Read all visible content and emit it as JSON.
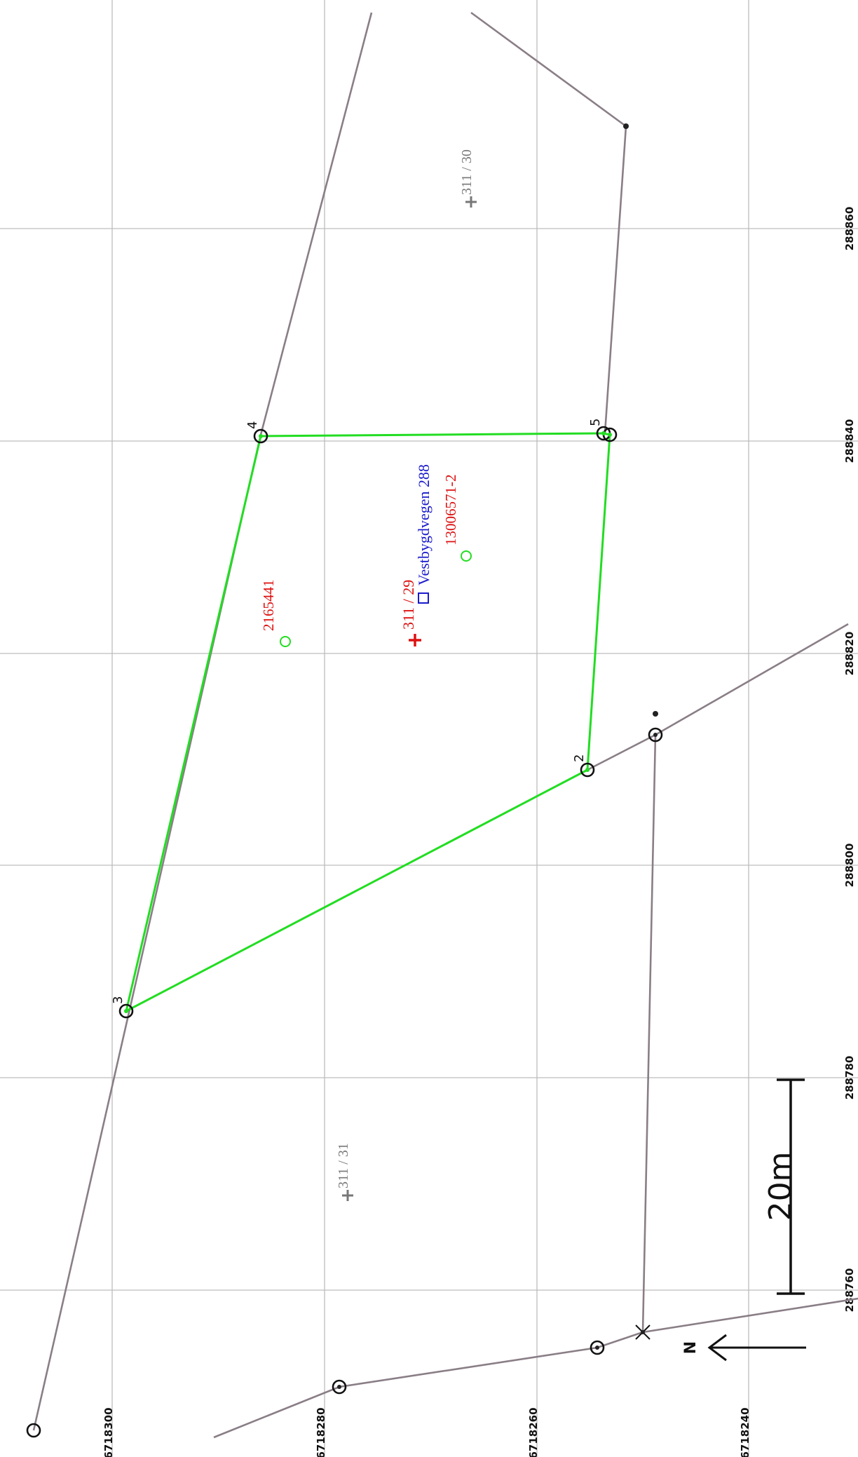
{
  "map": {
    "axis_labels": {
      "easting": [
        "288860",
        "288840",
        "288820",
        "288800",
        "288780",
        "288760"
      ],
      "northing": [
        "6718300",
        "6718280",
        "6718260",
        "6718240"
      ]
    },
    "vertex_labels": [
      "2",
      "3",
      "4",
      "5"
    ],
    "parcels": {
      "subject": "311 / 29",
      "neighbor_north": "311 / 30",
      "neighbor_south": "311 / 31"
    },
    "address": "Vestbygdvegen 288",
    "building_ids": [
      "2165441",
      "13006571-2"
    ],
    "scale_bar": {
      "label": "20m"
    },
    "north_arrow": {
      "label": "N"
    },
    "colors": {
      "grid": "#bdbdbd",
      "parcel_boundary": "#22dd22",
      "neighbor_boundary": "#8a7e86",
      "label_red": "#dd1111",
      "address_blue": "#1a1acc",
      "parcel_gray": "#777777"
    }
  }
}
